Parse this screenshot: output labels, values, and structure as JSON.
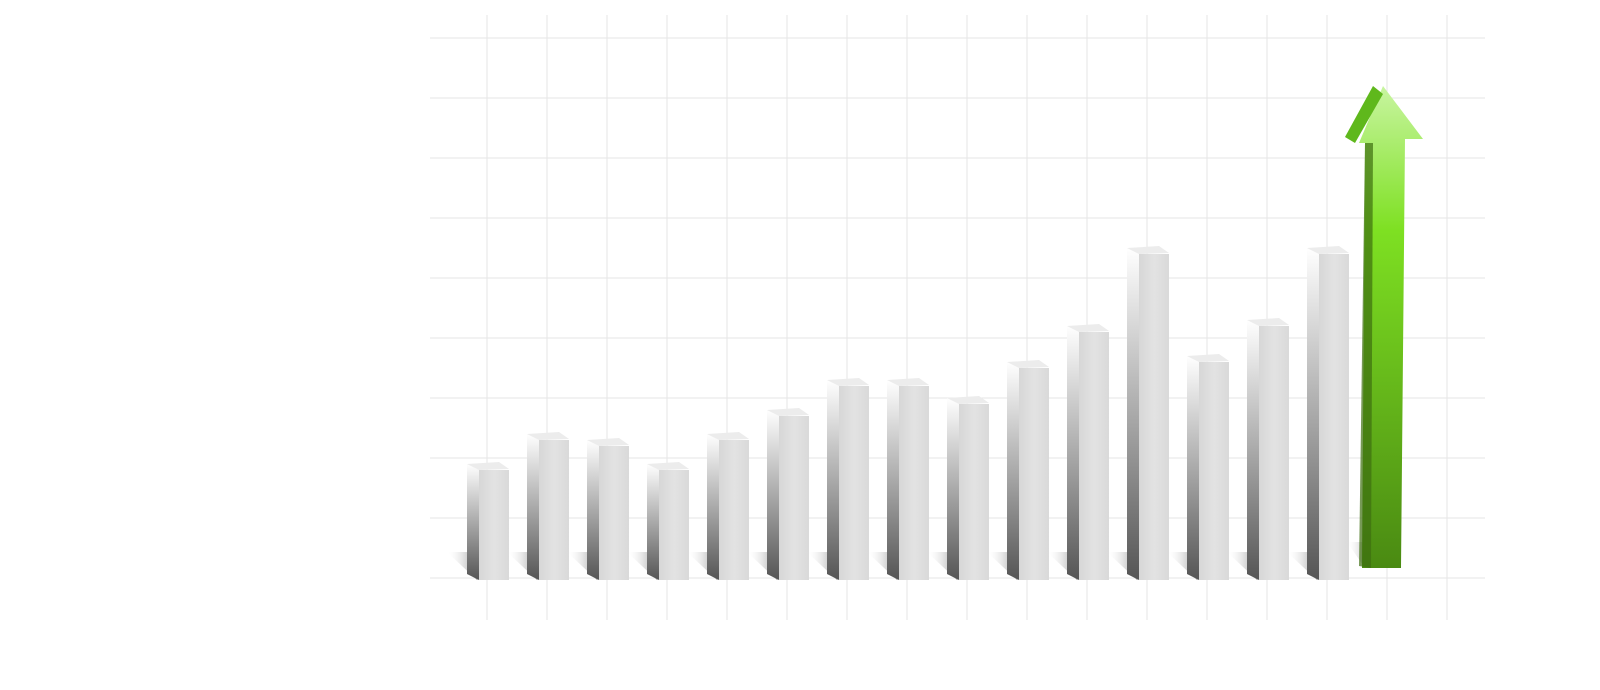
{
  "chart_data": {
    "type": "bar",
    "values": [
      1.9,
      2.4,
      2.3,
      1.9,
      2.4,
      2.8,
      3.3,
      3.3,
      3.0,
      3.6,
      4.2,
      5.5,
      3.7,
      4.3,
      5.5,
      8.2
    ],
    "colors": [
      "#dedede",
      "#dedede",
      "#dedede",
      "#dedede",
      "#dedede",
      "#dedede",
      "#dedede",
      "#dedede",
      "#dedede",
      "#dedede",
      "#dedede",
      "#dedede",
      "#dedede",
      "#dedede",
      "#dedede",
      "#6fd11f"
    ],
    "ylim": [
      0,
      9
    ],
    "yticks": [
      0,
      1,
      2,
      3,
      4,
      5,
      6,
      7,
      8,
      9
    ],
    "grid": true
  }
}
